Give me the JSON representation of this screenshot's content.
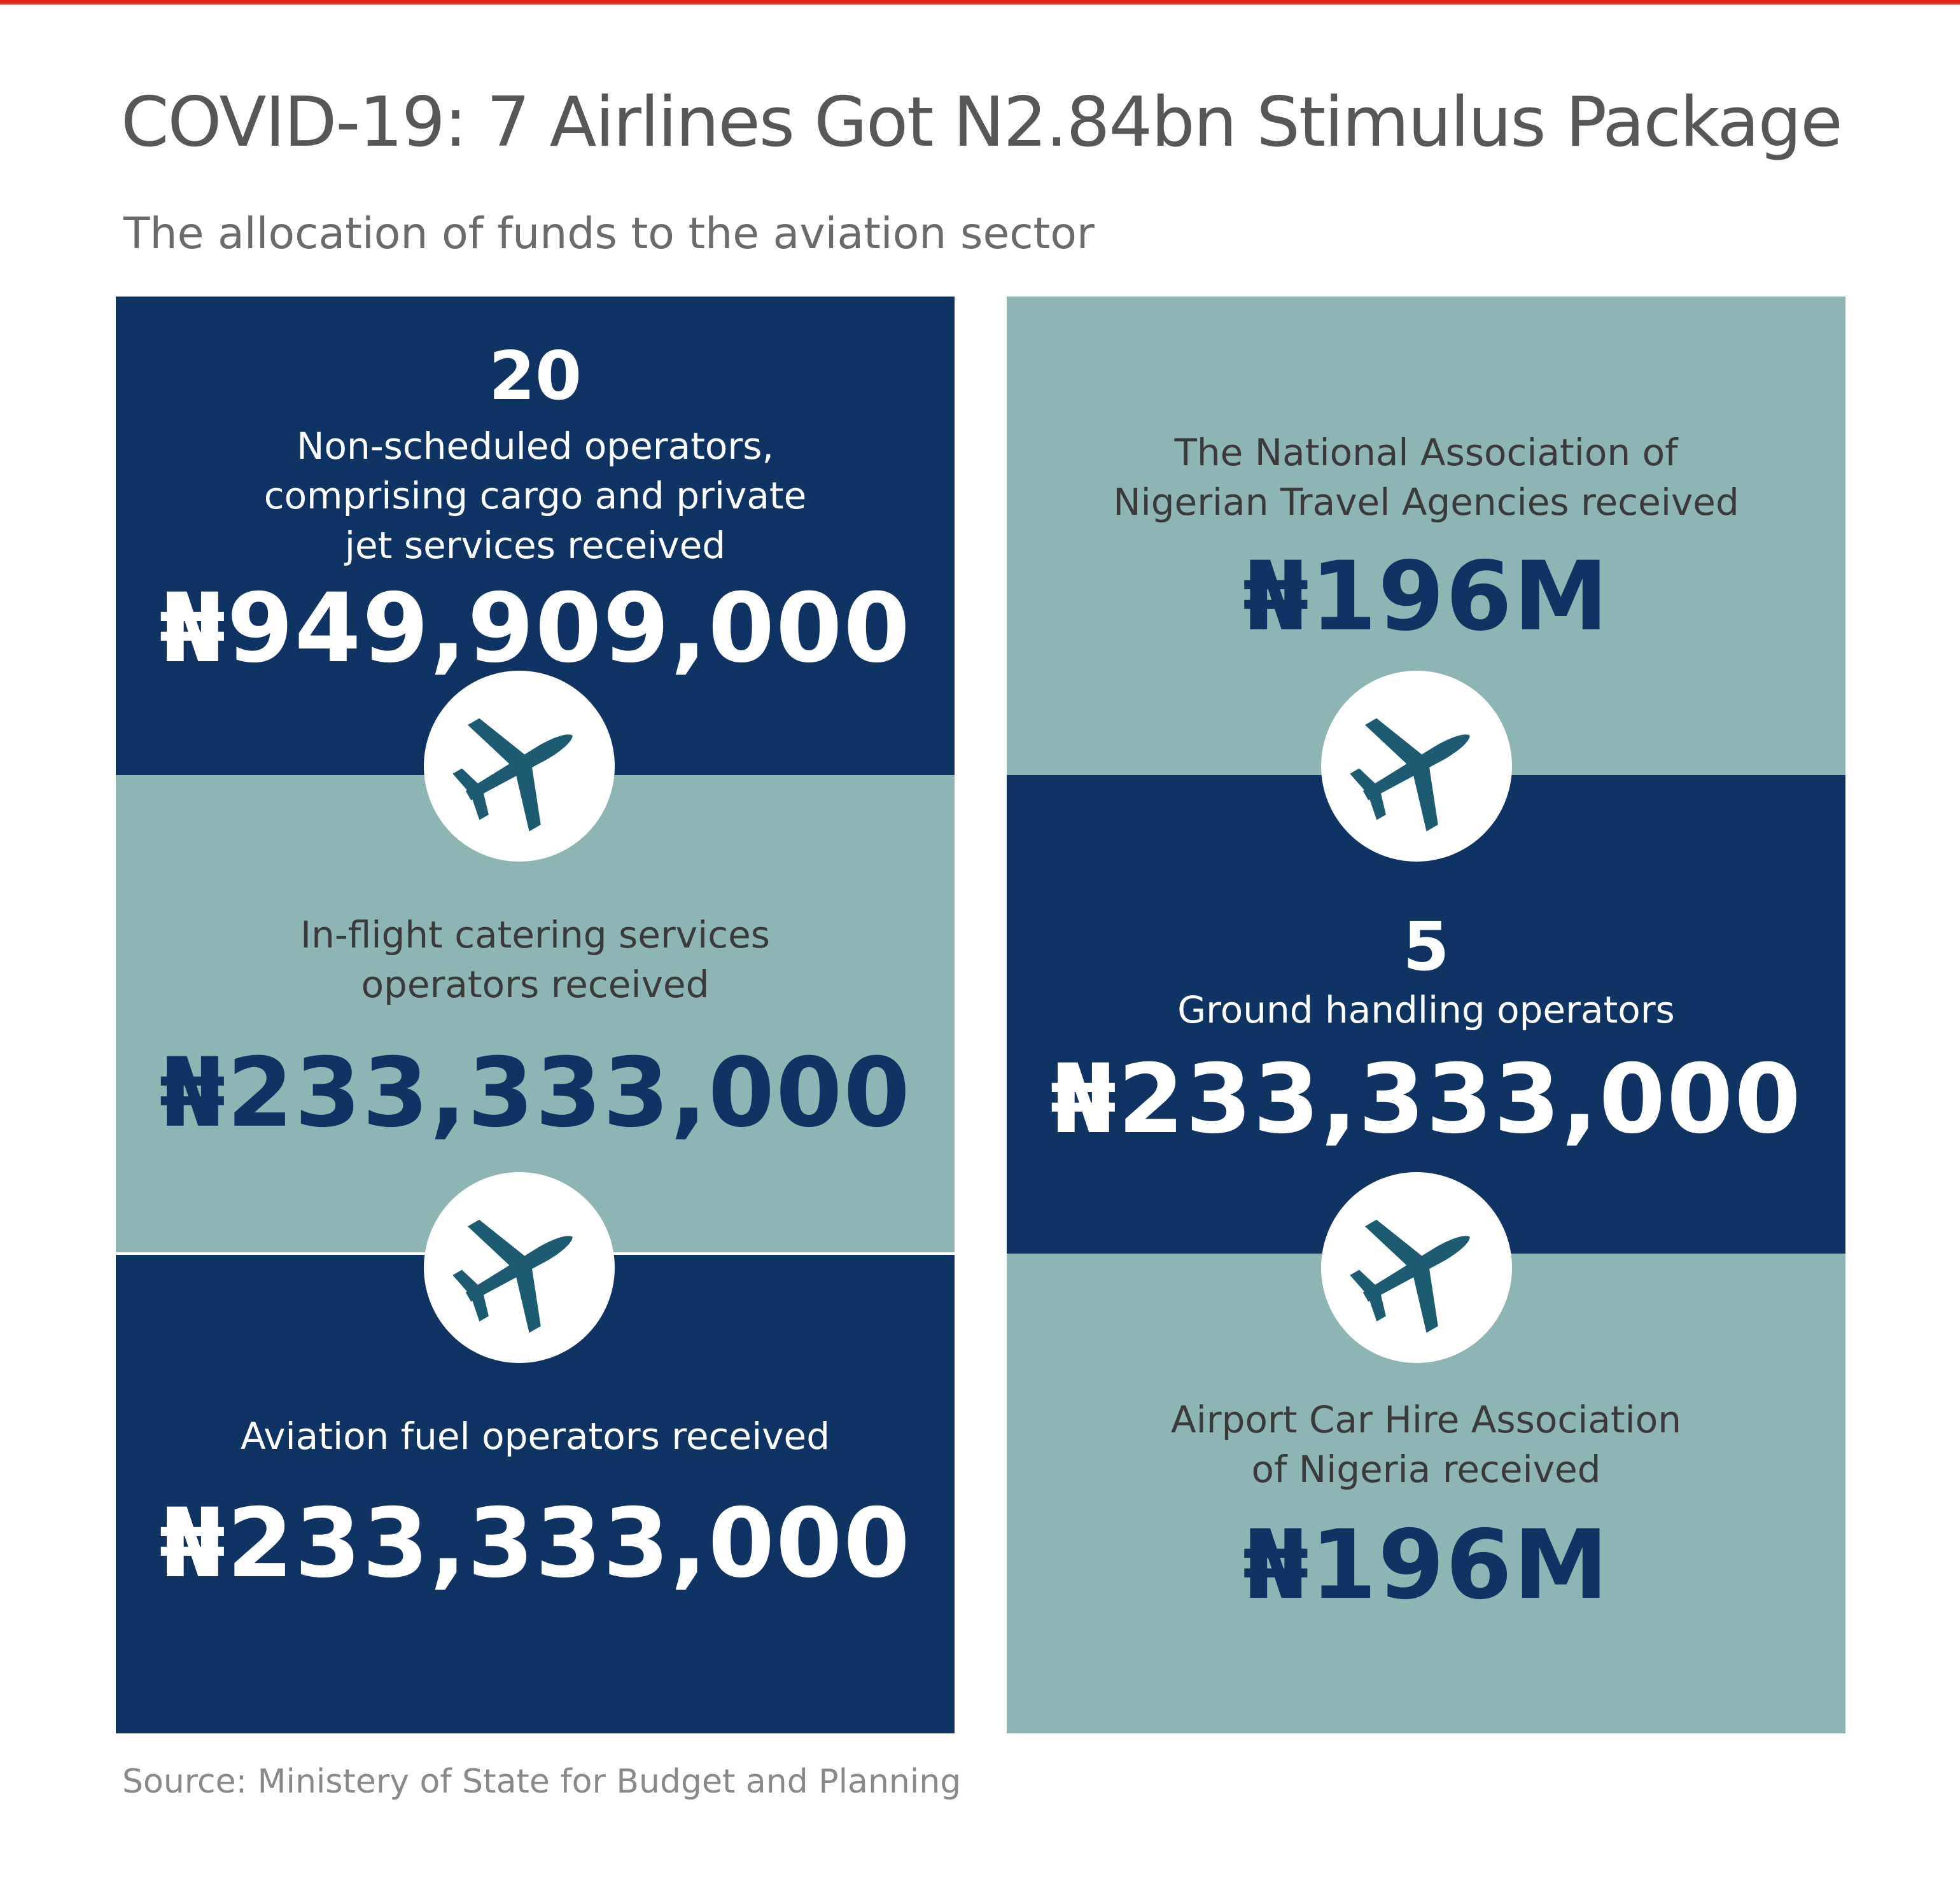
{
  "title": "COVID-19: 7 Airlines Got N2.84bn Stimulus Package",
  "subtitle": "The allocation of funds to the aviation sector",
  "left": {
    "top": {
      "count": "20",
      "desc": "Non-scheduled operators,\ncomprising cargo and private\njet services received",
      "amount": "₦949,909,000"
    },
    "middle": {
      "desc": "In-flight catering services\noperators received",
      "amount": "₦233,333,000"
    },
    "bottom": {
      "desc": "Aviation fuel operators received",
      "amount": "₦233,333,000"
    }
  },
  "right": {
    "top": {
      "desc": "The National Association of\nNigerian Travel Agencies received",
      "amount": "₦196M"
    },
    "middle": {
      "count": "5",
      "desc": "Ground handling operators",
      "amount": "₦233,333,000"
    },
    "bottom": {
      "desc": "Airport Car Hire Association\nof Nigeria received",
      "amount": "₦196M"
    }
  },
  "icons": [
    "airplane-icon",
    "airplane-icon",
    "airplane-icon",
    "airplane-icon"
  ],
  "colors": {
    "accent_bar": "#e2231a",
    "dark_panel": "#0f3463",
    "light_panel": "#8db5b3",
    "icon": "#1d5b73"
  },
  "source": "Source:  Ministery of State for Budget and Planning"
}
